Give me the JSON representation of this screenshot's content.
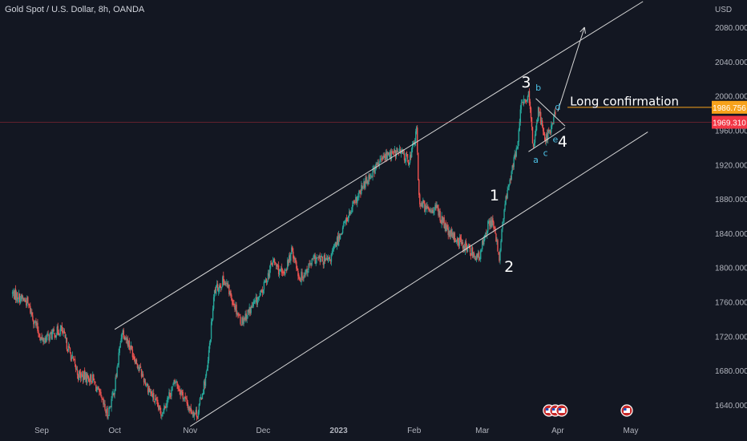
{
  "header": {
    "title": "Gold Spot / U.S. Dollar, 8h, OANDA"
  },
  "chart_data": {
    "type": "candlestick",
    "symbol": "Gold Spot / U.S. Dollar",
    "interval": "8h",
    "source": "OANDA",
    "currency": "USD",
    "ylim": [
      1615,
      2110
    ],
    "y_ticks": [
      "1640.000",
      "1680.000",
      "1720.000",
      "1760.000",
      "1800.000",
      "1840.000",
      "1880.000",
      "1920.000",
      "1960.000",
      "2000.000",
      "2040.000",
      "2080.000"
    ],
    "x_ticks": [
      {
        "label": "Sep",
        "date": "2022-09-01"
      },
      {
        "label": "Oct",
        "date": "2022-10-01"
      },
      {
        "label": "Nov",
        "date": "2022-11-01"
      },
      {
        "label": "Dec",
        "date": "2022-12-01"
      },
      {
        "label": "2023",
        "date": "2023-01-01"
      },
      {
        "label": "Feb",
        "date": "2023-02-01"
      },
      {
        "label": "Mar",
        "date": "2023-03-01"
      },
      {
        "label": "Apr",
        "date": "2023-04-01"
      },
      {
        "label": "May",
        "date": "2023-05-01"
      }
    ],
    "price_path": [
      [
        "2022-08-20",
        1770
      ],
      [
        "2022-08-26",
        1760
      ],
      [
        "2022-09-01",
        1715
      ],
      [
        "2022-09-09",
        1728
      ],
      [
        "2022-09-16",
        1675
      ],
      [
        "2022-09-22",
        1670
      ],
      [
        "2022-09-28",
        1628
      ],
      [
        "2022-10-01",
        1660
      ],
      [
        "2022-10-04",
        1728
      ],
      [
        "2022-10-07",
        1710
      ],
      [
        "2022-10-13",
        1670
      ],
      [
        "2022-10-20",
        1630
      ],
      [
        "2022-10-26",
        1668
      ],
      [
        "2022-11-01",
        1634
      ],
      [
        "2022-11-04",
        1630
      ],
      [
        "2022-11-08",
        1680
      ],
      [
        "2022-11-11",
        1772
      ],
      [
        "2022-11-15",
        1786
      ],
      [
        "2022-11-22",
        1737
      ],
      [
        "2022-11-30",
        1768
      ],
      [
        "2022-12-05",
        1808
      ],
      [
        "2022-12-09",
        1790
      ],
      [
        "2022-12-13",
        1820
      ],
      [
        "2022-12-16",
        1787
      ],
      [
        "2022-12-22",
        1810
      ],
      [
        "2022-12-28",
        1807
      ],
      [
        "2023-01-03",
        1849
      ],
      [
        "2023-01-06",
        1865
      ],
      [
        "2023-01-12",
        1900
      ],
      [
        "2023-01-17",
        1920
      ],
      [
        "2023-01-20",
        1930
      ],
      [
        "2023-01-26",
        1935
      ],
      [
        "2023-01-30",
        1925
      ],
      [
        "2023-02-02",
        1958
      ],
      [
        "2023-02-03",
        1880
      ],
      [
        "2023-02-06",
        1867
      ],
      [
        "2023-02-10",
        1870
      ],
      [
        "2023-02-15",
        1840
      ],
      [
        "2023-02-22",
        1825
      ],
      [
        "2023-02-28",
        1810
      ],
      [
        "2023-03-02",
        1842
      ],
      [
        "2023-03-05",
        1856
      ],
      [
        "2023-03-08",
        1812
      ],
      [
        "2023-03-10",
        1868
      ],
      [
        "2023-03-13",
        1912
      ],
      [
        "2023-03-15",
        1935
      ],
      [
        "2023-03-17",
        1988
      ],
      [
        "2023-03-20",
        2000
      ],
      [
        "2023-03-22",
        1940
      ],
      [
        "2023-03-24",
        1985
      ],
      [
        "2023-03-27",
        1950
      ],
      [
        "2023-03-29",
        1960
      ],
      [
        "2023-03-31",
        1980
      ]
    ],
    "price_lines": [
      {
        "value": 1986.756,
        "label": "1986.756",
        "color": "#f7a21b"
      },
      {
        "value": 1969.31,
        "label": "1969.310",
        "color": "#f23645"
      }
    ],
    "channel_lines": [
      [
        [
          "2022-10-01",
          1728
        ],
        [
          "2023-05-06",
          2110
        ]
      ],
      [
        [
          "2022-11-01",
          1615
        ],
        [
          "2023-05-08",
          1958
        ]
      ]
    ],
    "triangle_lines": [
      [
        [
          "2023-03-23",
          1997
        ],
        [
          "2023-04-04",
          1965
        ]
      ],
      [
        [
          "2023-03-20",
          1935
        ],
        [
          "2023-04-04",
          1963
        ]
      ]
    ],
    "projection_arrow": [
      [
        "2023-04-01",
        1982
      ],
      [
        "2023-04-12",
        2080
      ]
    ],
    "annotations": [
      {
        "text": "1",
        "date": "2023-03-06",
        "price": 1878,
        "style": "big"
      },
      {
        "text": "2",
        "date": "2023-03-12",
        "price": 1795,
        "style": "big"
      },
      {
        "text": "3",
        "date": "2023-03-19",
        "price": 2010,
        "style": "big"
      },
      {
        "text": "4",
        "date": "2023-04-03",
        "price": 1941,
        "style": "big"
      },
      {
        "text": "a",
        "date": "2023-03-23",
        "price": 1922,
        "style": "small"
      },
      {
        "text": "b",
        "date": "2023-03-24",
        "price": 2006,
        "style": "small"
      },
      {
        "text": "c",
        "date": "2023-03-27",
        "price": 1930,
        "style": "small"
      },
      {
        "text": "d",
        "date": "2023-04-01",
        "price": 1984,
        "style": "small"
      },
      {
        "text": "e",
        "date": "2023-03-31",
        "price": 1946,
        "style": "small"
      },
      {
        "text": "Long confirmation",
        "date": "2023-04-06",
        "price": 1989,
        "style": "text"
      }
    ],
    "event_markers": [
      {
        "date": "2023-03-31",
        "count": 3,
        "icon": "us-flag-icon"
      },
      {
        "date": "2023-05-02",
        "count": 1,
        "icon": "us-flag-icon"
      }
    ],
    "colors": {
      "background": "#131722",
      "up": "#26a69a",
      "down": "#ef5350",
      "drawing": "#d8d8d8",
      "text": "#b2b5be",
      "accent": "#f7a21b",
      "price": "#f23645",
      "wave_small": "#4dc3e8"
    }
  }
}
